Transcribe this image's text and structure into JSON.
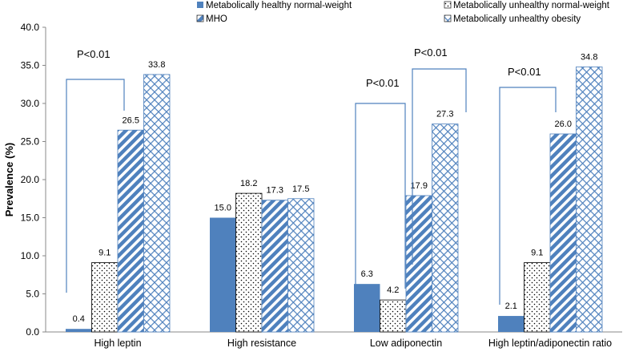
{
  "chart_data": {
    "type": "bar",
    "title": "",
    "xlabel": "",
    "ylabel": "Prevalence (%)",
    "ylim": [
      0,
      40
    ],
    "yticks": [
      "0.0",
      "5.0",
      "10.0",
      "15.0",
      "20.0",
      "25.0",
      "30.0",
      "35.0",
      "40.0"
    ],
    "categories": [
      "High leptin",
      "High resistance",
      "Low adiponectin",
      "High leptin/adiponectin ratio"
    ],
    "series": [
      {
        "name": "Metabolically healthy normal-weight",
        "values": [
          0.4,
          15.0,
          6.3,
          2.1
        ],
        "labels": [
          "0.4",
          "15.0",
          "6.3",
          "2.1"
        ],
        "color": "#4f81bd",
        "pattern": "solid"
      },
      {
        "name": "Metabolically unhealthy normal-weight",
        "values": [
          9.1,
          18.2,
          4.2,
          9.1
        ],
        "labels": [
          "9.1",
          "18.2",
          "4.2",
          "9.1"
        ],
        "color": "#000000",
        "pattern": "dots"
      },
      {
        "name": "MHO",
        "values": [
          26.5,
          17.3,
          17.9,
          26.0
        ],
        "labels": [
          "26.5",
          "17.3",
          "17.9",
          "26.0"
        ],
        "color": "#4f81bd",
        "pattern": "stripes"
      },
      {
        "name": "Metabolically unhealthy obesity",
        "values": [
          33.8,
          17.5,
          27.3,
          34.8
        ],
        "labels": [
          "33.8",
          "17.5",
          "27.3",
          "34.8"
        ],
        "color": "#4f81bd",
        "pattern": "crosshatch"
      }
    ],
    "annotations": [
      "P<0.01",
      "P<0.01",
      "P<0.01",
      "P<0.01"
    ],
    "legend_position": "top"
  }
}
